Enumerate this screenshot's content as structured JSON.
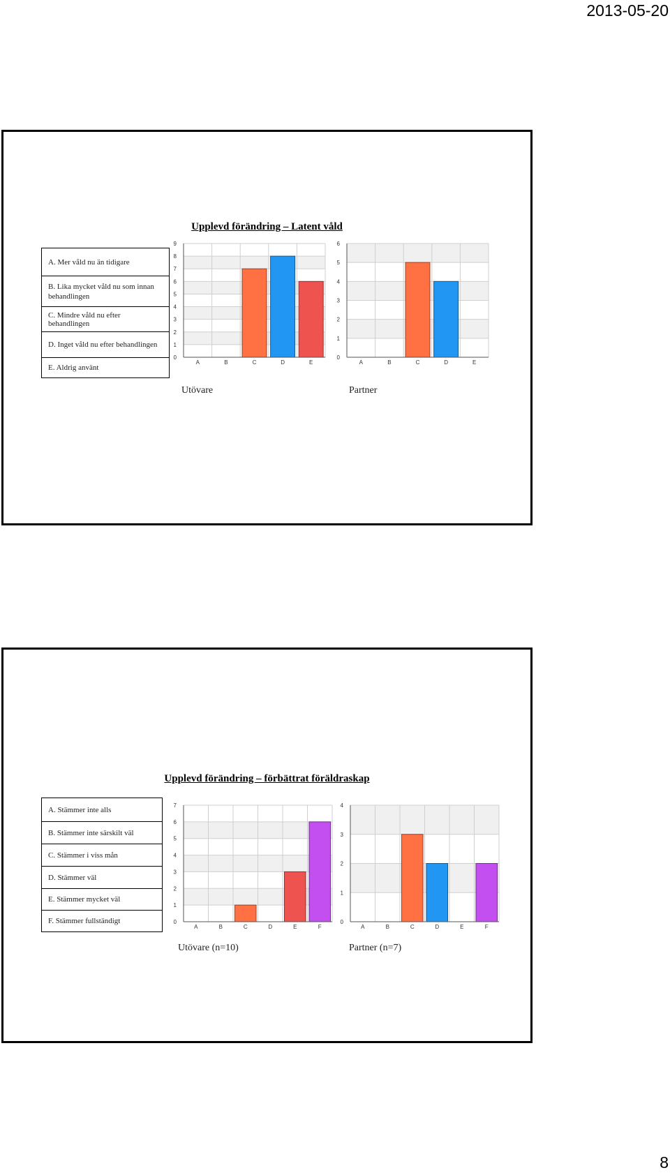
{
  "header": {
    "date": "2013-05-20"
  },
  "footer": {
    "page_number": "8"
  },
  "slides": [
    {
      "title": "Upplevd förändring – Latent våld",
      "legend": [
        "A. Mer våld nu än tidigare",
        "B. Lika mycket våld nu som innan behandlingen",
        "C. Mindre våld nu efter behandlingen",
        "D. Inget våld nu efter behandlingen",
        "E. Aldrig använt"
      ],
      "captions": [
        "Utövare",
        "Partner"
      ]
    },
    {
      "title": "Upplevd förändring – förbättrat föräldraskap",
      "legend": [
        "A. Stämmer inte alls",
        "B. Stämmer inte särskilt väl",
        "C. Stämmer i viss mån",
        "D. Stämmer väl",
        "E. Stämmer mycket väl",
        "F. Stämmer fullständigt"
      ],
      "captions": [
        "Utövare (n=10)",
        "Partner (n=7)"
      ]
    }
  ],
  "chart_data": [
    {
      "type": "bar",
      "categories": [
        "A",
        "B",
        "C",
        "D",
        "E"
      ],
      "values": [
        0,
        0,
        7,
        8,
        6
      ],
      "ylim": [
        0,
        9
      ],
      "grid": true,
      "colors": [
        "#ff7043",
        "#2196f3",
        "#ef5350"
      ],
      "colorStart": 2
    },
    {
      "type": "bar",
      "categories": [
        "A",
        "B",
        "C",
        "D",
        "E"
      ],
      "values": [
        0,
        0,
        5,
        4,
        0
      ],
      "ylim": [
        0,
        6
      ],
      "grid": true,
      "colors": [
        "#ff7043",
        "#2196f3"
      ],
      "colorStart": 2
    },
    {
      "type": "bar",
      "categories": [
        "A",
        "B",
        "C",
        "D",
        "E",
        "F"
      ],
      "values": [
        0,
        0,
        1,
        0,
        3,
        6
      ],
      "ylim": [
        0,
        7
      ],
      "grid": true,
      "colors": [
        "#ff7043",
        "#2196f3",
        "#ef5350",
        "#c44ff0"
      ],
      "colorStart": 2
    },
    {
      "type": "bar",
      "categories": [
        "A",
        "B",
        "C",
        "D",
        "E",
        "F"
      ],
      "values": [
        0,
        0,
        3,
        2,
        0,
        2
      ],
      "ylim": [
        0,
        4
      ],
      "grid": true,
      "colors": [
        "#ff7043",
        "#2196f3",
        "#ef5350",
        "#c44ff0"
      ],
      "colorStart": 2
    }
  ]
}
